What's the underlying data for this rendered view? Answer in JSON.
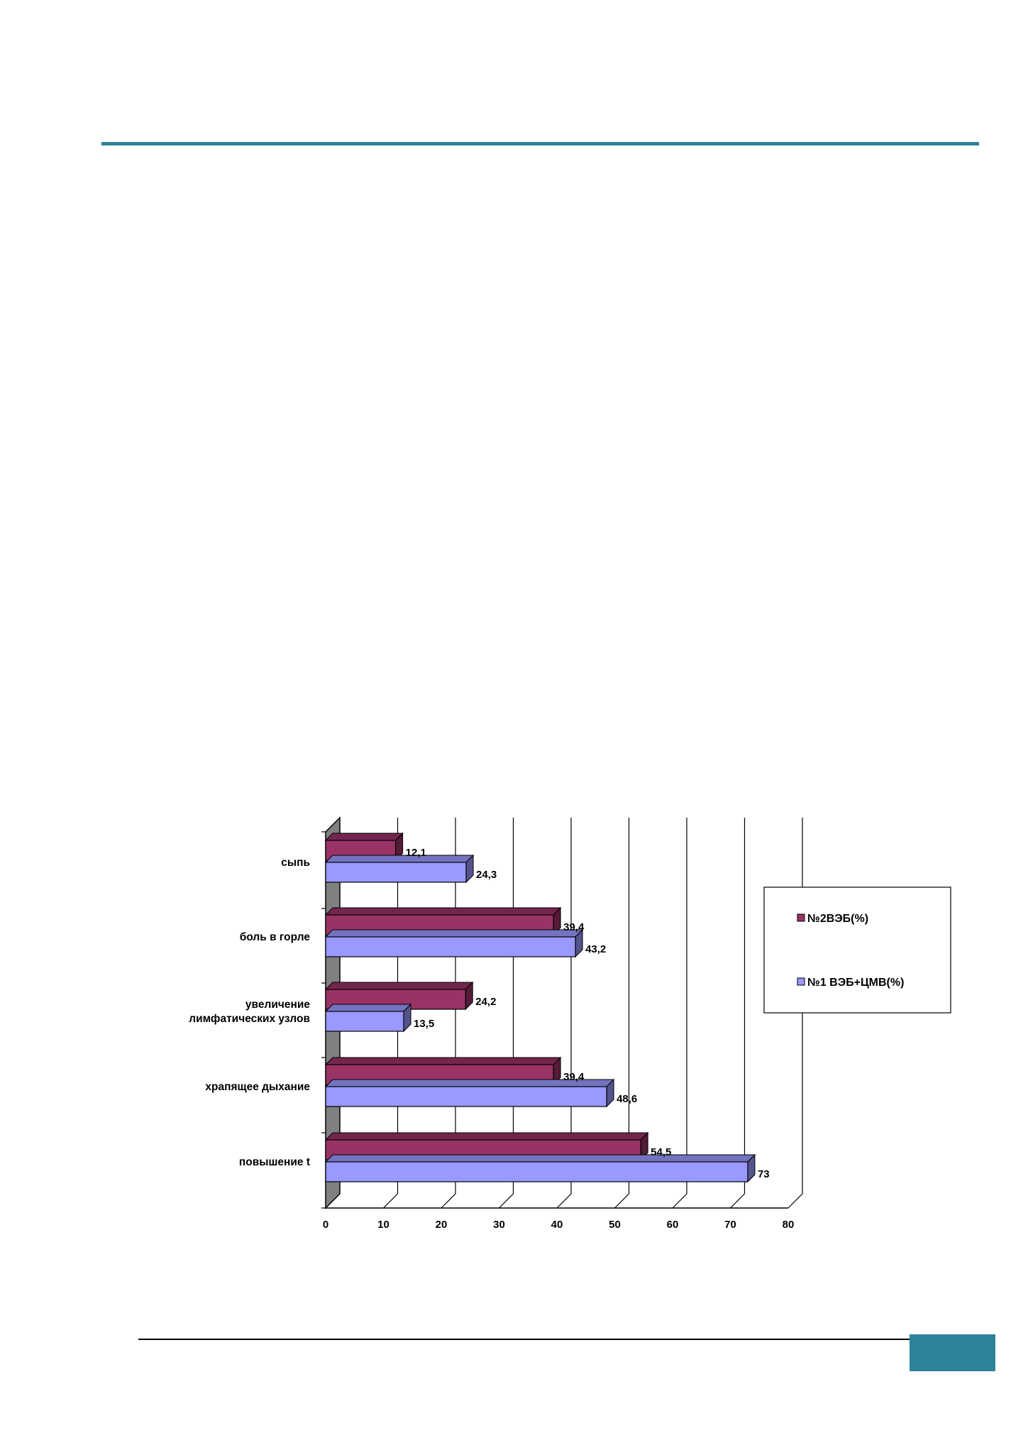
{
  "colors": {
    "accent": "#2e8299",
    "series_1": "#993366",
    "series_2": "#9999ff",
    "back_wall": "#808080"
  },
  "chart_data": {
    "type": "bar",
    "orientation": "horizontal",
    "style": "3d-clustered",
    "categories": [
      "сыпь",
      "боль в горле",
      "увеличение лимфатических узлов",
      "храпящее дыхание",
      "повышение t"
    ],
    "category_lines": [
      [
        "сыпь"
      ],
      [
        "боль в горле"
      ],
      [
        "увеличение",
        "лимфатических узлов"
      ],
      [
        "храпящее дыхание"
      ],
      [
        "повышение t"
      ]
    ],
    "series": [
      {
        "name": "№2ВЭБ(%)",
        "color": "#993366",
        "values": [
          12.1,
          39.4,
          24.2,
          39.4,
          54.5
        ],
        "labels": [
          "12,1",
          "39,4",
          "24,2",
          "39,4",
          "54,5"
        ]
      },
      {
        "name": "№1 ВЭБ+ЦМВ(%)",
        "color": "#9999ff",
        "values": [
          24.3,
          43.2,
          13.5,
          48.6,
          73
        ],
        "labels": [
          "24,3",
          "43,2",
          "13,5",
          "48,6",
          "73"
        ]
      }
    ],
    "xlim": [
      0,
      80
    ],
    "xticks": [
      0,
      10,
      20,
      30,
      40,
      50,
      60,
      70,
      80
    ],
    "xtick_labels": [
      "0",
      "10",
      "20",
      "30",
      "40",
      "50",
      "60",
      "70",
      "80"
    ],
    "grid": "vertical",
    "legend_position": "right",
    "title": "",
    "xlabel": "",
    "ylabel": ""
  }
}
